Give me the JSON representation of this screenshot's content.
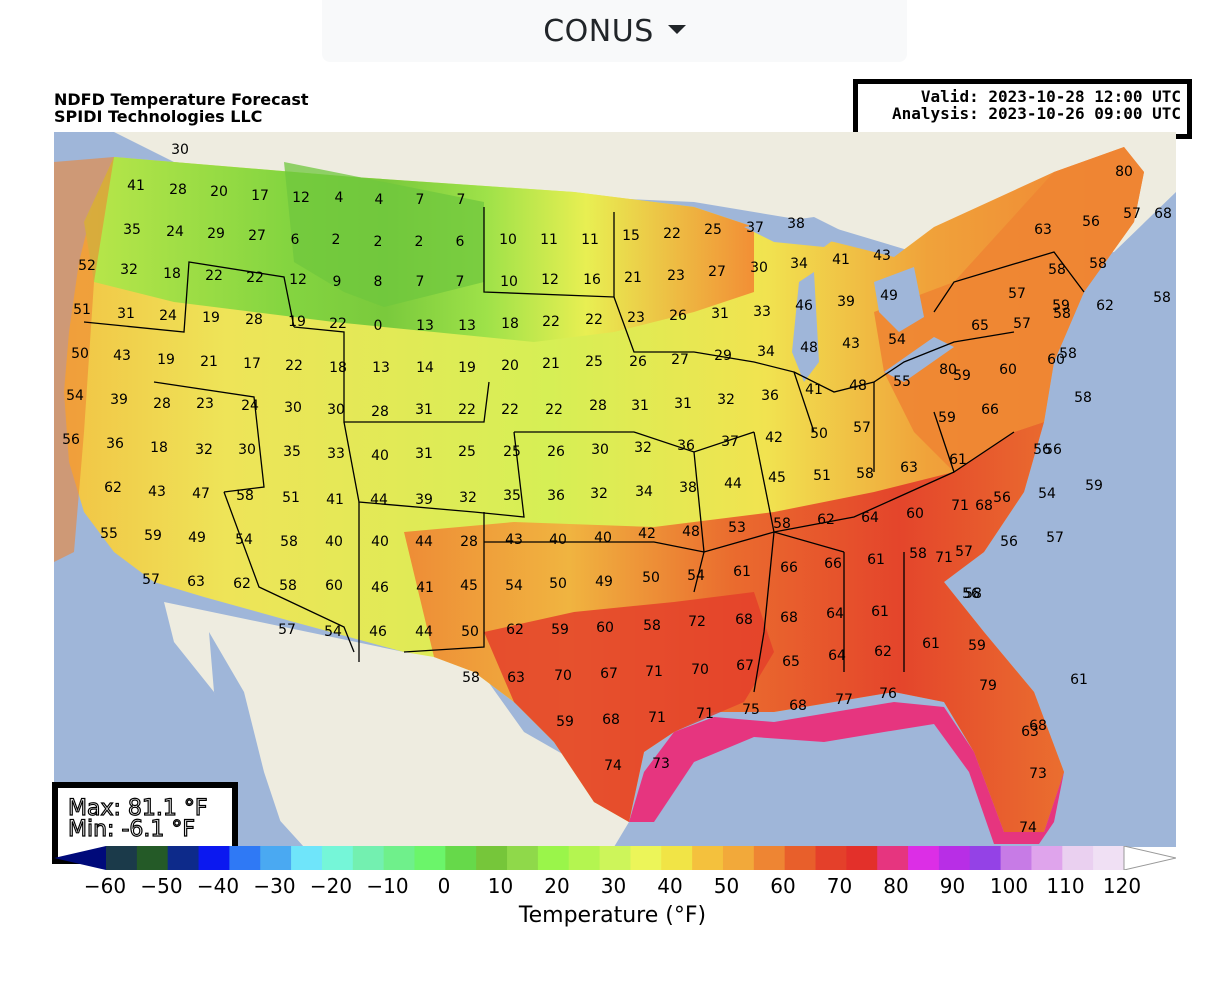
{
  "dropdown": {
    "label": "CONUS",
    "icon": "caret-down-icon"
  },
  "title": {
    "line1": "NDFD Temperature Forecast",
    "line2": "SPIDI Technologies LLC"
  },
  "valid": {
    "valid_line": "Valid: 2023-10-28 12:00 UTC",
    "analysis_line": "Analysis: 2023-10-26 09:00 UTC"
  },
  "stats": {
    "max": "Max: 81.1 °F",
    "min": "Min: -6.1 °F"
  },
  "colorbar": {
    "label": "Temperature (°F)",
    "ticks": [
      "−60",
      "−50",
      "−40",
      "−30",
      "−20",
      "−10",
      "0",
      "10",
      "20",
      "30",
      "40",
      "50",
      "60",
      "70",
      "80",
      "90",
      "100",
      "110",
      "120"
    ],
    "colors": [
      "#000a7a",
      "#1b3a4a",
      "#245a27",
      "#0d2a8a",
      "#0b18f0",
      "#2f79f5",
      "#4aa9f2",
      "#6fe5fa",
      "#75f6d8",
      "#73f0b0",
      "#6ff08b",
      "#6bf56a",
      "#66d94a",
      "#76c63a",
      "#8fd94a",
      "#9af54a",
      "#b4f550",
      "#cdf55a",
      "#ecf559",
      "#f1e446",
      "#f4c13d",
      "#f2a93a",
      "#ee8533",
      "#e85f2b",
      "#e4402a",
      "#e3302a",
      "#e6357f",
      "#dc2ee6",
      "#b82ee6",
      "#9442e6",
      "#c77be6",
      "#dfa4ec",
      "#ead0f0",
      "#f0e0f4",
      "#ffffff"
    ],
    "extend": "both"
  },
  "map": {
    "ocean_color": "#9fb6d9",
    "land_color": "#eeece0",
    "temperature_labels": [
      {
        "t": "30"
      },
      {
        "t": "41"
      },
      {
        "t": "28"
      },
      {
        "t": "20"
      },
      {
        "t": "17"
      },
      {
        "t": "12"
      },
      {
        "t": "4"
      },
      {
        "t": "4"
      },
      {
        "t": "7"
      },
      {
        "t": "7"
      },
      {
        "t": "35"
      },
      {
        "t": "24"
      },
      {
        "t": "29"
      },
      {
        "t": "27"
      },
      {
        "t": "6"
      },
      {
        "t": "2"
      },
      {
        "t": "2"
      },
      {
        "t": "2"
      },
      {
        "t": "6"
      },
      {
        "t": "10"
      },
      {
        "t": "11"
      },
      {
        "t": "11"
      },
      {
        "t": "15"
      },
      {
        "t": "22"
      },
      {
        "t": "25"
      },
      {
        "t": "37"
      },
      {
        "t": "38"
      },
      {
        "t": "52"
      },
      {
        "t": "32"
      },
      {
        "t": "18"
      },
      {
        "t": "22"
      },
      {
        "t": "22"
      },
      {
        "t": "12"
      },
      {
        "t": "9"
      },
      {
        "t": "8"
      },
      {
        "t": "7"
      },
      {
        "t": "7"
      },
      {
        "t": "10"
      },
      {
        "t": "12"
      },
      {
        "t": "16"
      },
      {
        "t": "21"
      },
      {
        "t": "23"
      },
      {
        "t": "27"
      },
      {
        "t": "30"
      },
      {
        "t": "34"
      },
      {
        "t": "41"
      },
      {
        "t": "43"
      },
      {
        "t": "51"
      },
      {
        "t": "31"
      },
      {
        "t": "24"
      },
      {
        "t": "19"
      },
      {
        "t": "28"
      },
      {
        "t": "19"
      },
      {
        "t": "22"
      },
      {
        "t": "0"
      },
      {
        "t": "13"
      },
      {
        "t": "13"
      },
      {
        "t": "18"
      },
      {
        "t": "22"
      },
      {
        "t": "22"
      },
      {
        "t": "23"
      },
      {
        "t": "26"
      },
      {
        "t": "31"
      },
      {
        "t": "33"
      },
      {
        "t": "46"
      },
      {
        "t": "39"
      },
      {
        "t": "49"
      },
      {
        "t": "50"
      },
      {
        "t": "43"
      },
      {
        "t": "19"
      },
      {
        "t": "21"
      },
      {
        "t": "17"
      },
      {
        "t": "22"
      },
      {
        "t": "18"
      },
      {
        "t": "13"
      },
      {
        "t": "14"
      },
      {
        "t": "19"
      },
      {
        "t": "20"
      },
      {
        "t": "21"
      },
      {
        "t": "25"
      },
      {
        "t": "26"
      },
      {
        "t": "27"
      },
      {
        "t": "29"
      },
      {
        "t": "34"
      },
      {
        "t": "48"
      },
      {
        "t": "43"
      },
      {
        "t": "54"
      },
      {
        "t": "54"
      },
      {
        "t": "39"
      },
      {
        "t": "28"
      },
      {
        "t": "23"
      },
      {
        "t": "24"
      },
      {
        "t": "30"
      },
      {
        "t": "30"
      },
      {
        "t": "28"
      },
      {
        "t": "31"
      },
      {
        "t": "22"
      },
      {
        "t": "22"
      },
      {
        "t": "22"
      },
      {
        "t": "28"
      },
      {
        "t": "31"
      },
      {
        "t": "31"
      },
      {
        "t": "32"
      },
      {
        "t": "36"
      },
      {
        "t": "41"
      },
      {
        "t": "48"
      },
      {
        "t": "55"
      },
      {
        "t": "56"
      },
      {
        "t": "36"
      },
      {
        "t": "18"
      },
      {
        "t": "32"
      },
      {
        "t": "30"
      },
      {
        "t": "35"
      },
      {
        "t": "33"
      },
      {
        "t": "40"
      },
      {
        "t": "31"
      },
      {
        "t": "25"
      },
      {
        "t": "25"
      },
      {
        "t": "26"
      },
      {
        "t": "30"
      },
      {
        "t": "32"
      },
      {
        "t": "36"
      },
      {
        "t": "37"
      },
      {
        "t": "42"
      },
      {
        "t": "50"
      },
      {
        "t": "57"
      },
      {
        "t": "62"
      },
      {
        "t": "43"
      },
      {
        "t": "47"
      },
      {
        "t": "58"
      },
      {
        "t": "51"
      },
      {
        "t": "41"
      },
      {
        "t": "44"
      },
      {
        "t": "39"
      },
      {
        "t": "32"
      },
      {
        "t": "35"
      },
      {
        "t": "36"
      },
      {
        "t": "32"
      },
      {
        "t": "34"
      },
      {
        "t": "38"
      },
      {
        "t": "44"
      },
      {
        "t": "45"
      },
      {
        "t": "51"
      },
      {
        "t": "58"
      },
      {
        "t": "63"
      },
      {
        "t": "55"
      },
      {
        "t": "59"
      },
      {
        "t": "49"
      },
      {
        "t": "54"
      },
      {
        "t": "58"
      },
      {
        "t": "40"
      },
      {
        "t": "40"
      },
      {
        "t": "44"
      },
      {
        "t": "28"
      },
      {
        "t": "43"
      },
      {
        "t": "40"
      },
      {
        "t": "40"
      },
      {
        "t": "42"
      },
      {
        "t": "48"
      },
      {
        "t": "53"
      },
      {
        "t": "58"
      },
      {
        "t": "62"
      },
      {
        "t": "64"
      },
      {
        "t": "60"
      },
      {
        "t": "57"
      },
      {
        "t": "63"
      },
      {
        "t": "62"
      },
      {
        "t": "58"
      },
      {
        "t": "60"
      },
      {
        "t": "46"
      },
      {
        "t": "41"
      },
      {
        "t": "45"
      },
      {
        "t": "54"
      },
      {
        "t": "50"
      },
      {
        "t": "49"
      },
      {
        "t": "50"
      },
      {
        "t": "54"
      },
      {
        "t": "61"
      },
      {
        "t": "66"
      },
      {
        "t": "66"
      },
      {
        "t": "61"
      },
      {
        "t": "57"
      },
      {
        "t": "54"
      },
      {
        "t": "46"
      },
      {
        "t": "44"
      },
      {
        "t": "50"
      },
      {
        "t": "62"
      },
      {
        "t": "59"
      },
      {
        "t": "60"
      },
      {
        "t": "58"
      },
      {
        "t": "72"
      },
      {
        "t": "68"
      },
      {
        "t": "68"
      },
      {
        "t": "64"
      },
      {
        "t": "61"
      },
      {
        "t": "58"
      },
      {
        "t": "63"
      },
      {
        "t": "70"
      },
      {
        "t": "67"
      },
      {
        "t": "71"
      },
      {
        "t": "70"
      },
      {
        "t": "67"
      },
      {
        "t": "65"
      },
      {
        "t": "64"
      },
      {
        "t": "62"
      },
      {
        "t": "59"
      },
      {
        "t": "68"
      },
      {
        "t": "71"
      },
      {
        "t": "71"
      },
      {
        "t": "75"
      },
      {
        "t": "68"
      },
      {
        "t": "77"
      },
      {
        "t": "76"
      },
      {
        "t": "74"
      },
      {
        "t": "73"
      },
      {
        "t": "80"
      },
      {
        "t": "56"
      },
      {
        "t": "57"
      },
      {
        "t": "68"
      },
      {
        "t": "63"
      },
      {
        "t": "58"
      },
      {
        "t": "58"
      },
      {
        "t": "59"
      },
      {
        "t": "57"
      },
      {
        "t": "58"
      },
      {
        "t": "58"
      },
      {
        "t": "62"
      },
      {
        "t": "65"
      },
      {
        "t": "57"
      },
      {
        "t": "58"
      },
      {
        "t": "59"
      },
      {
        "t": "60"
      },
      {
        "t": "60"
      },
      {
        "t": "58"
      },
      {
        "t": "66"
      },
      {
        "t": "59"
      },
      {
        "t": "61"
      },
      {
        "t": "56"
      },
      {
        "t": "56"
      },
      {
        "t": "68"
      },
      {
        "t": "56"
      },
      {
        "t": "54"
      },
      {
        "t": "59"
      },
      {
        "t": "71"
      },
      {
        "t": "57"
      },
      {
        "t": "56"
      },
      {
        "t": "57"
      },
      {
        "t": "71"
      },
      {
        "t": "58"
      },
      {
        "t": "56"
      },
      {
        "t": "58"
      },
      {
        "t": "59"
      },
      {
        "t": "61"
      },
      {
        "t": "61"
      },
      {
        "t": "79"
      },
      {
        "t": "63"
      },
      {
        "t": "68"
      },
      {
        "t": "73"
      },
      {
        "t": "74"
      },
      {
        "t": "80"
      },
      {
        "t": "64"
      }
    ]
  }
}
